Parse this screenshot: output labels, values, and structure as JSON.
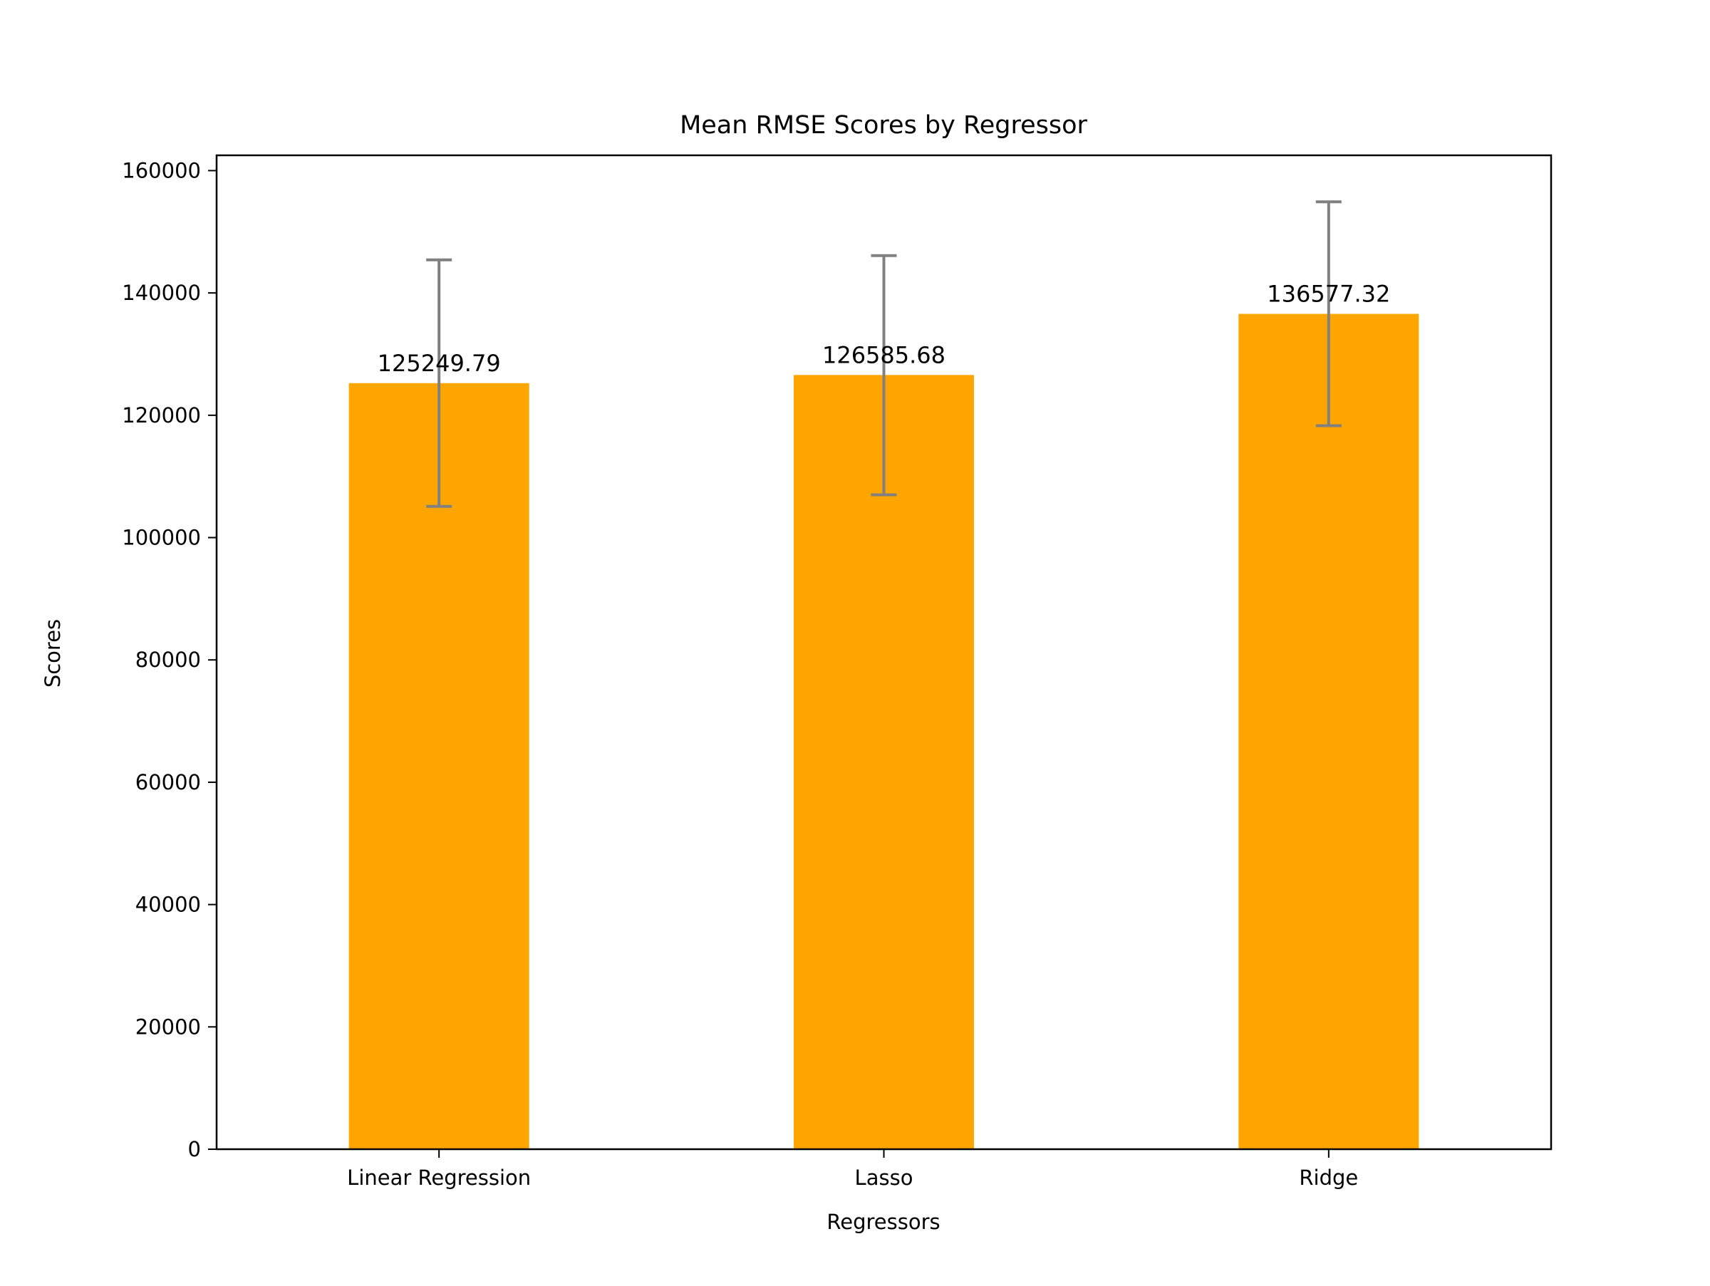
{
  "chart_data": {
    "type": "bar",
    "title": "Mean RMSE Scores by Regressor",
    "xlabel": "Regressors",
    "ylabel": "Scores",
    "categories": [
      "Linear Regression",
      "Lasso",
      "Ridge"
    ],
    "values": [
      125249.79,
      126585.68,
      136577.32
    ],
    "value_labels": [
      "125249.79",
      "126585.68",
      "136577.32"
    ],
    "error_bars": [
      {
        "low": 105100,
        "high": 145400
      },
      {
        "low": 107000,
        "high": 146100
      },
      {
        "low": 118300,
        "high": 154900
      }
    ],
    "ylim": [
      0,
      162500
    ],
    "yticks": [
      0,
      20000,
      40000,
      60000,
      80000,
      100000,
      120000,
      140000,
      160000
    ],
    "ytick_labels": [
      "0",
      "20000",
      "40000",
      "60000",
      "80000",
      "100000",
      "120000",
      "140000",
      "160000"
    ],
    "grid": false,
    "legend": "none",
    "bar_color": "#FFA500",
    "error_color": "#808080"
  }
}
